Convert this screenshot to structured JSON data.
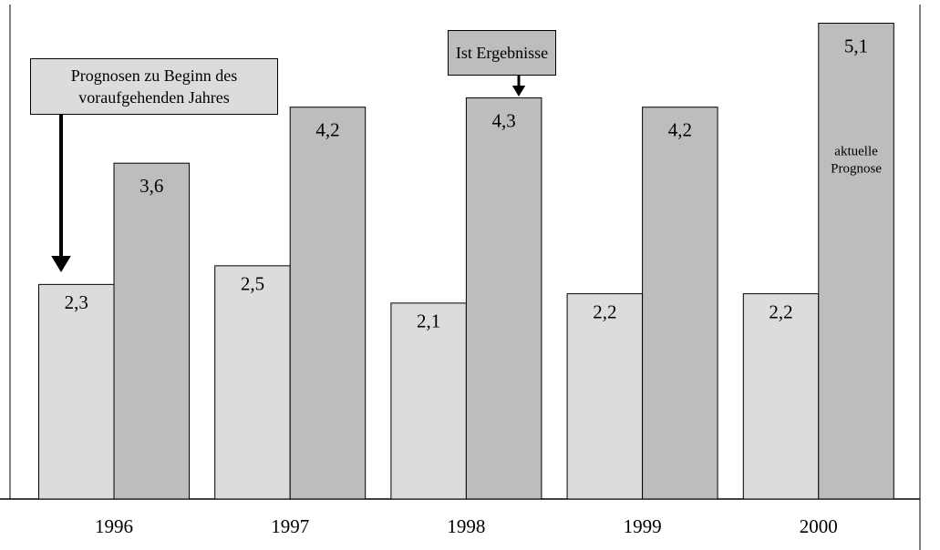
{
  "chart_data": {
    "type": "bar",
    "categories": [
      "1996",
      "1997",
      "1998",
      "1999",
      "2000"
    ],
    "series": [
      {
        "name": "Prognosen zu Beginn des voraufgehenden Jahres",
        "color": "#dcdcdc",
        "values": [
          2.3,
          2.5,
          2.1,
          2.2,
          2.2
        ],
        "value_labels": [
          "2,3",
          "2,5",
          "2,1",
          "2,2",
          "2,2"
        ]
      },
      {
        "name": "Ist Ergebnisse",
        "color": "#bdbdbd",
        "values": [
          3.6,
          4.2,
          4.3,
          4.2,
          5.1
        ],
        "value_labels": [
          "3,6",
          "4,2",
          "4,3",
          "4,2",
          "5,1"
        ]
      }
    ],
    "annotation": {
      "lines": [
        "aktuelle",
        "Prognose"
      ]
    },
    "ylim": [
      0,
      5.3
    ]
  }
}
